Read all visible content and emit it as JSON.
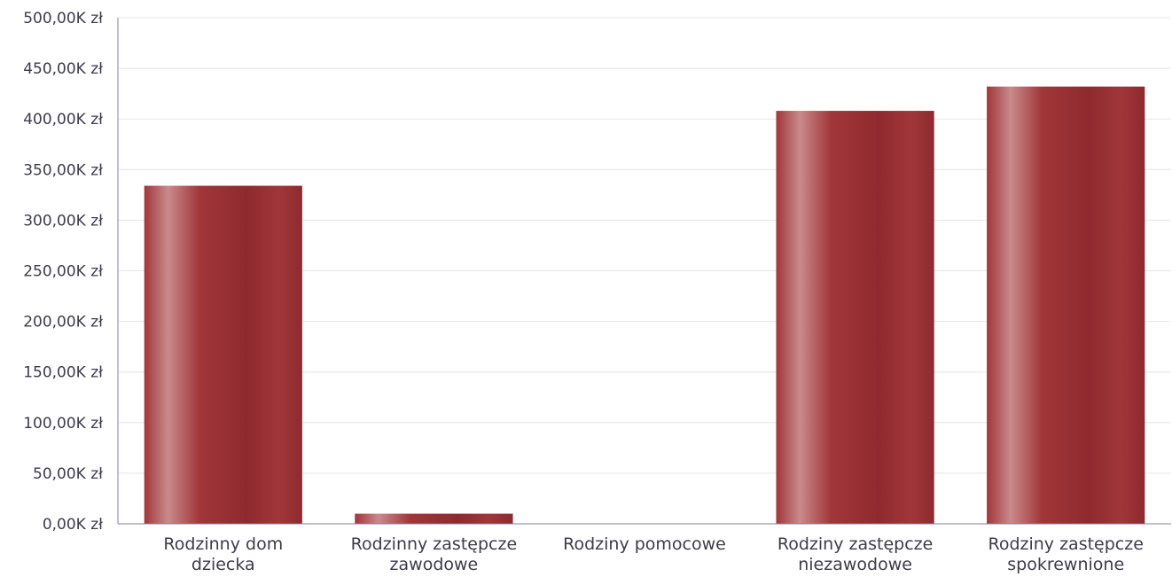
{
  "chart_data": {
    "type": "bar",
    "title": "",
    "xlabel": "",
    "ylabel": "",
    "categories": [
      [
        "Rodzinny dom",
        "dziecka"
      ],
      [
        "Rodzinny zastępcze",
        "zawodowe"
      ],
      [
        "Rodziny pomocowe"
      ],
      [
        "Rodziny zastępcze",
        "niezawodowe"
      ],
      [
        "Rodziny zastępcze",
        "spokrewnione"
      ]
    ],
    "values": [
      334,
      10,
      0,
      408,
      432
    ],
    "value_unit": "K zł",
    "ylim": [
      0,
      500
    ],
    "yticks": [
      0,
      50,
      100,
      150,
      200,
      250,
      300,
      350,
      400,
      450,
      500
    ],
    "ytick_labels": [
      "0,00K zł",
      "50,00K zł",
      "100,00K zł",
      "150,00K zł",
      "200,00K zł",
      "250,00K zł",
      "300,00K zł",
      "350,00K zł",
      "400,00K zł",
      "450,00K zł",
      "500,00K zł"
    ],
    "grid": true,
    "legend": "none",
    "colors": {
      "bar_dark": "#8e2a2f",
      "bar_mid": "#a13639",
      "bar_light": "#c98a8c",
      "grid": "#e6e6e6",
      "axis": "#7f7fa6",
      "text": "#3c3c4c"
    }
  }
}
